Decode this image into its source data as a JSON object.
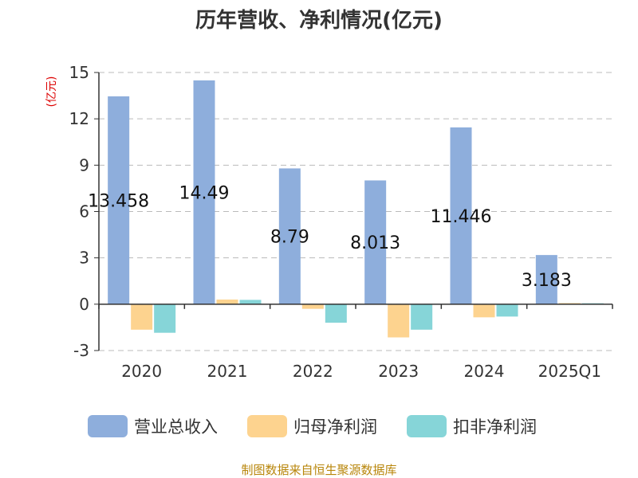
{
  "chart_data": {
    "type": "bar",
    "title": "历年营收、净利情况(亿元)",
    "ylabel": "(亿元)",
    "categories": [
      "2020",
      "2021",
      "2022",
      "2023",
      "2024",
      "2025Q1"
    ],
    "ylim": [
      -3,
      15
    ],
    "yticks": [
      -3,
      0,
      3,
      6,
      9,
      12,
      15
    ],
    "grid": true,
    "legend_position": "bottom",
    "series": [
      {
        "name": "营业总收入",
        "color": "#8eaedc",
        "values": [
          13.458,
          14.49,
          8.79,
          8.013,
          11.446,
          3.183
        ],
        "labels": [
          "13.458",
          "14.49",
          "8.79",
          "8.013",
          "11.446",
          "3.183"
        ]
      },
      {
        "name": "归母净利润",
        "color": "#fdd38f",
        "values": [
          -1.65,
          0.3,
          -0.3,
          -2.15,
          -0.85,
          0.07
        ]
      },
      {
        "name": "扣非净利润",
        "color": "#86d5d8",
        "values": [
          -1.85,
          0.28,
          -1.2,
          -1.65,
          -0.8,
          0.06
        ]
      }
    ],
    "source": "制图数据来自恒生聚源数据库",
    "ylabel_color": "#dd0000",
    "source_color": "#b8860b"
  }
}
